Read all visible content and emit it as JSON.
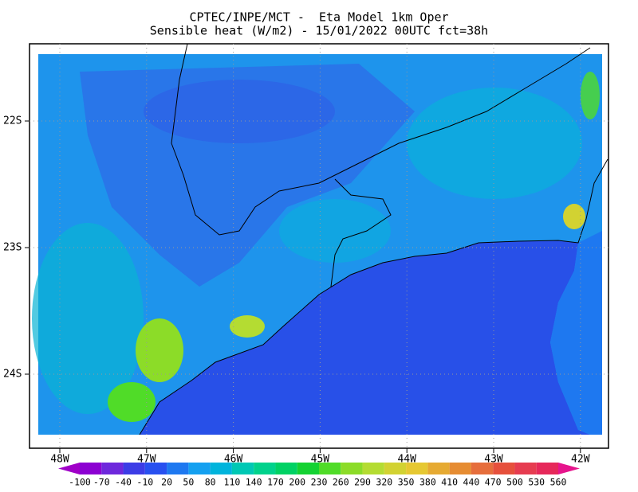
{
  "header": {
    "line1": "CPTEC/INPE/MCT -  Eta Model 1km Oper",
    "line2": "Sensible heat (W/m2) - 15/01/2022 00UTC fct=38h"
  },
  "map": {
    "lat_labels": [
      "22S",
      "23S",
      "24S"
    ],
    "lon_labels": [
      "48W",
      "47W",
      "46W",
      "45W",
      "44W",
      "43W",
      "42W"
    ]
  },
  "colorbar": {
    "levels": [
      -100,
      -70,
      -40,
      -10,
      20,
      50,
      80,
      110,
      140,
      170,
      200,
      230,
      260,
      290,
      320,
      350,
      380,
      410,
      440,
      470,
      500,
      530,
      560
    ],
    "colors": [
      "#a000c8",
      "#8c00d2",
      "#6e28dc",
      "#3c3ce6",
      "#2850f0",
      "#1e78f0",
      "#14a0f0",
      "#00b4dc",
      "#00c8b4",
      "#00d28c",
      "#00d264",
      "#14d232",
      "#50dc28",
      "#8cdc28",
      "#b4dc32",
      "#d2d232",
      "#e6c832",
      "#e6aa32",
      "#e68c32",
      "#e66e3c",
      "#e6503c",
      "#e63c50",
      "#e6285a",
      "#e6148c"
    ]
  }
}
